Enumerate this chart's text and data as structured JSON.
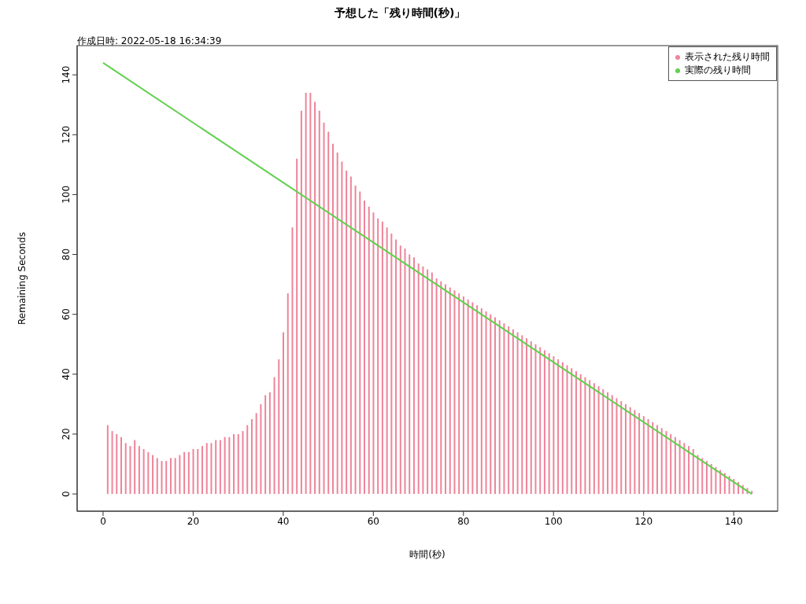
{
  "chart_data": {
    "type": "bar",
    "title": "予想した「残り時間(秒)」",
    "annotations": [
      "作成日時: 2022-05-18 16:34:39"
    ],
    "xlabel": "時間(秒)",
    "ylabel": "Remaining Seconds",
    "x": [
      0,
      1,
      2,
      3,
      4,
      5,
      6,
      7,
      8,
      9,
      10,
      11,
      12,
      13,
      14,
      15,
      16,
      17,
      18,
      19,
      20,
      21,
      22,
      23,
      24,
      25,
      26,
      27,
      28,
      29,
      30,
      31,
      32,
      33,
      34,
      35,
      36,
      37,
      38,
      39,
      40,
      41,
      42,
      43,
      44,
      45,
      46,
      47,
      48,
      49,
      50,
      51,
      52,
      53,
      54,
      55,
      56,
      57,
      58,
      59,
      60,
      61,
      62,
      63,
      64,
      65,
      66,
      67,
      68,
      69,
      70,
      71,
      72,
      73,
      74,
      75,
      76,
      77,
      78,
      79,
      80,
      81,
      82,
      83,
      84,
      85,
      86,
      87,
      88,
      89,
      90,
      91,
      92,
      93,
      94,
      95,
      96,
      97,
      98,
      99,
      100,
      101,
      102,
      103,
      104,
      105,
      106,
      107,
      108,
      109,
      110,
      111,
      112,
      113,
      114,
      115,
      116,
      117,
      118,
      119,
      120,
      121,
      122,
      123,
      124,
      125,
      126,
      127,
      128,
      129,
      130,
      131,
      132,
      133,
      134,
      135,
      136,
      137,
      138,
      139,
      140,
      141,
      142,
      143,
      144
    ],
    "series": [
      {
        "name": "表示された残り時間",
        "color": "#ee8499",
        "values": [
          0,
          23,
          21,
          20,
          19,
          17,
          16,
          18,
          16,
          15,
          14,
          13,
          12,
          11,
          11,
          12,
          12,
          13,
          14,
          14,
          15,
          15,
          16,
          17,
          17,
          18,
          18,
          19,
          19,
          20,
          20,
          21,
          23,
          25,
          27,
          30,
          33,
          34,
          39,
          45,
          54,
          67,
          89,
          112,
          128,
          134,
          134,
          131,
          128,
          124,
          121,
          117,
          114,
          111,
          108,
          106,
          103,
          101,
          98,
          96,
          94,
          92,
          91,
          89,
          87,
          85,
          83,
          82,
          80,
          79,
          77,
          76,
          75,
          74,
          72,
          71,
          70,
          69,
          68,
          67,
          66,
          65,
          64,
          63,
          62,
          61,
          60,
          59,
          58,
          57,
          56,
          55,
          54,
          53,
          52,
          51,
          50,
          49,
          48,
          47,
          46,
          45,
          44,
          43,
          42,
          41,
          40,
          39,
          38,
          37,
          36,
          35,
          34,
          33,
          32,
          31,
          30,
          29,
          28,
          27,
          26,
          25,
          24,
          23,
          22,
          21,
          20,
          19,
          18,
          17,
          16,
          15,
          13,
          12,
          11,
          10,
          9,
          8,
          7,
          6,
          5,
          4,
          3,
          2,
          1
        ]
      },
      {
        "name": "実際の残り時間",
        "type": "line",
        "color": "#61d04f",
        "x": [
          0,
          144
        ],
        "values": [
          144,
          0
        ]
      }
    ],
    "xlim": [
      -5.76,
      149.76
    ],
    "xticks": [
      0,
      20,
      40,
      60,
      80,
      100,
      120,
      140
    ],
    "ylim": [
      -5.76,
      149.76
    ],
    "yticks": [
      0,
      20,
      40,
      60,
      80,
      100,
      120,
      140
    ],
    "legend": "top right"
  }
}
